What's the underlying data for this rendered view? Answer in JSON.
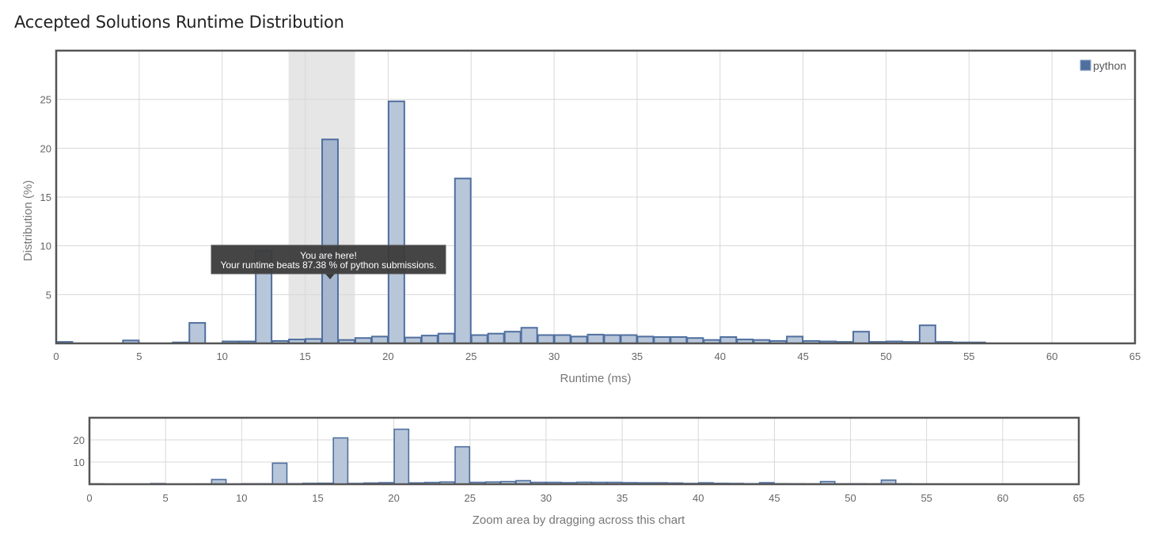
{
  "page": {
    "title": "Accepted Solutions Runtime Distribution"
  },
  "colors": {
    "bar_fill": "#b8c6da",
    "bar_stroke": "#4f6f9f",
    "highlight_fill": "#a5b6ce",
    "frame": "#555555",
    "grid": "#d8d8d8",
    "highlight_band": "#e6e6e6",
    "tooltip_bg": "#3b3b3b",
    "legend_swatch": "#4f6f9f"
  },
  "chart_data": [
    {
      "type": "bar",
      "role": "main",
      "title": "",
      "xlabel": "Runtime (ms)",
      "ylabel": "Distribution (%)",
      "xlim": [
        0,
        65
      ],
      "ylim": [
        0,
        30
      ],
      "x_ticks": [
        0,
        5,
        10,
        15,
        20,
        25,
        30,
        35,
        40,
        45,
        50,
        55,
        60,
        65
      ],
      "y_ticks": [
        5,
        10,
        15,
        20,
        25
      ],
      "grid": true,
      "legend": {
        "position": "top-right",
        "entries": [
          "python"
        ]
      },
      "highlight_range": [
        14,
        18
      ],
      "series": [
        {
          "name": "python",
          "bin_width": 1,
          "x": [
            0,
            4,
            7,
            8,
            10,
            11,
            12,
            13,
            14,
            15,
            16,
            17,
            18,
            19,
            20,
            21,
            22,
            23,
            24,
            25,
            26,
            27,
            28,
            29,
            30,
            31,
            32,
            33,
            34,
            35,
            36,
            37,
            38,
            39,
            40,
            41,
            42,
            43,
            44,
            45,
            46,
            47,
            48,
            49,
            50,
            51,
            52,
            53,
            54,
            55
          ],
          "values": [
            0.15,
            0.3,
            0.1,
            2.1,
            0.2,
            0.2,
            9.5,
            0.25,
            0.4,
            0.45,
            20.9,
            0.35,
            0.55,
            0.7,
            24.8,
            0.6,
            0.8,
            1.0,
            16.9,
            0.85,
            1.0,
            1.2,
            1.6,
            0.85,
            0.85,
            0.7,
            0.9,
            0.85,
            0.85,
            0.7,
            0.65,
            0.65,
            0.55,
            0.35,
            0.65,
            0.4,
            0.35,
            0.25,
            0.7,
            0.25,
            0.2,
            0.15,
            1.2,
            0.15,
            0.2,
            0.15,
            1.85,
            0.15,
            0.1,
            0.1
          ]
        }
      ],
      "tooltip": {
        "bin": 16,
        "line1": "You are here!",
        "line2": "Your runtime beats 87.38 % of python submissions."
      }
    },
    {
      "type": "bar",
      "role": "navigator",
      "xlabel": "Zoom area by dragging across this chart",
      "xlim": [
        0,
        65
      ],
      "ylim": [
        0,
        30
      ],
      "x_ticks": [
        0,
        5,
        10,
        15,
        20,
        25,
        30,
        35,
        40,
        45,
        50,
        55,
        60,
        65
      ],
      "y_ticks": [
        10,
        20
      ],
      "grid": true
    }
  ]
}
